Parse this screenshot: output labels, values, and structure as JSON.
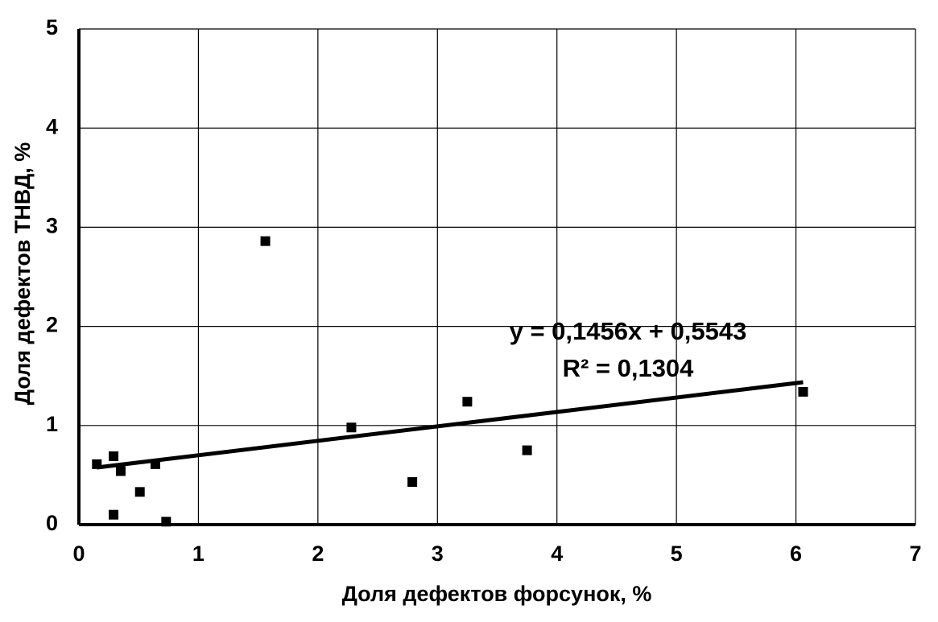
{
  "chart_data": {
    "type": "scatter",
    "x_label": "Доля дефектов форсунок, %",
    "y_label": "Доля дефектов ТНВД, %",
    "series": [
      {
        "color": "#000000",
        "x": [
          0.15,
          0.29,
          0.29,
          0.35,
          0.51,
          0.64,
          0.73,
          1.56,
          2.28,
          2.79,
          3.25,
          3.75,
          6.06
        ],
        "values": [
          0.61,
          0.69,
          0.1,
          0.54,
          0.33,
          0.61,
          0.03,
          2.86,
          0.98,
          0.43,
          1.24,
          0.75,
          1.34
        ]
      }
    ],
    "trendline": {
      "slope": 0.1456,
      "intercept": 0.5543,
      "color": "#000000",
      "equation": "y = 0,1456x + 0,5543",
      "r2_label": "R² = 0,1304"
    },
    "xlim": [
      0,
      7
    ],
    "xticks": [
      0,
      1,
      2,
      3,
      4,
      5,
      6,
      7
    ],
    "ylim": [
      0,
      5
    ],
    "yticks": [
      0,
      1,
      2,
      3,
      4,
      5
    ],
    "grid": true
  }
}
